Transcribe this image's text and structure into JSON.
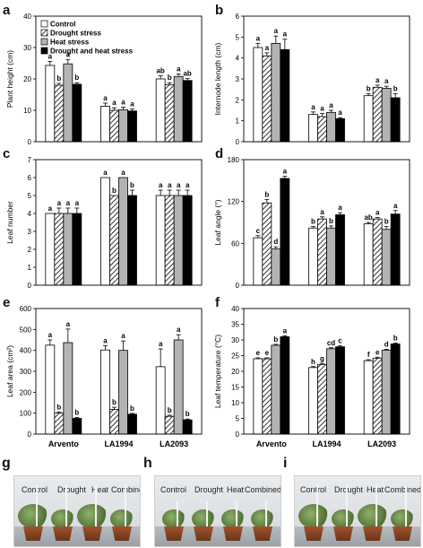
{
  "legend": {
    "items": [
      {
        "label": "Control",
        "pattern": "white"
      },
      {
        "label": "Drought stress",
        "pattern": "hatch"
      },
      {
        "label": "Heat stress",
        "pattern": "gray"
      },
      {
        "label": "Drought and heat stress",
        "pattern": "black"
      }
    ]
  },
  "colors": {
    "white": "#ffffff",
    "gray": "#b3b3b3",
    "black": "#000000",
    "hatch": "#000000"
  },
  "chart_data": [
    {
      "panel": "a",
      "type": "bar",
      "ylabel": "Plant height  (cm)",
      "ylim": [
        0,
        40
      ],
      "yticks": [
        0,
        10,
        20,
        30,
        40
      ],
      "categories": [
        "Arvento",
        "LA1994",
        "LA2093"
      ],
      "values": [
        [
          24.3,
          18.0,
          24.8,
          18.3
        ],
        [
          11.3,
          10.0,
          10.2,
          9.8
        ],
        [
          20.0,
          18.2,
          20.8,
          19.5
        ]
      ],
      "errors": [
        [
          1.3,
          0.6,
          1.3,
          0.5
        ],
        [
          1.0,
          0.8,
          0.8,
          0.6
        ],
        [
          1.0,
          0.6,
          0.8,
          0.6
        ]
      ],
      "letters": [
        [
          "a",
          "b",
          "a",
          "b"
        ],
        [
          "a",
          "a",
          "a",
          "a"
        ],
        [
          "ab",
          "b",
          "a",
          "ab"
        ]
      ],
      "show_xlabels": false
    },
    {
      "panel": "b",
      "type": "bar",
      "ylabel": "Internode length  (cm)",
      "ylim": [
        0,
        6
      ],
      "yticks": [
        0,
        1,
        2,
        3,
        4,
        5,
        6
      ],
      "categories": [
        "Arvento",
        "LA1994",
        "LA2093"
      ],
      "values": [
        [
          4.5,
          4.1,
          4.7,
          4.4
        ],
        [
          1.3,
          1.2,
          1.4,
          1.1
        ],
        [
          2.2,
          2.6,
          2.55,
          2.1
        ]
      ],
      "errors": [
        [
          0.2,
          0.15,
          0.35,
          0.5
        ],
        [
          0.12,
          0.15,
          0.1,
          0.05
        ],
        [
          0.1,
          0.1,
          0.1,
          0.2
        ]
      ],
      "letters": [
        [
          "a",
          "a",
          "a",
          "a"
        ],
        [
          "a",
          "a",
          "a",
          "a"
        ],
        [
          "b",
          "a",
          "a",
          "b"
        ]
      ],
      "show_xlabels": false
    },
    {
      "panel": "c",
      "type": "bar",
      "ylabel": "Leaf number",
      "ylim": [
        0,
        7
      ],
      "yticks": [
        0,
        1,
        2,
        3,
        4,
        5,
        6,
        7
      ],
      "categories": [
        "Arvento",
        "LA1994",
        "LA2093"
      ],
      "values": [
        [
          4.0,
          4.0,
          4.0,
          4.0
        ],
        [
          6.0,
          5.0,
          6.0,
          5.0
        ],
        [
          5.0,
          5.0,
          5.0,
          5.0
        ]
      ],
      "errors": [
        [
          0.0,
          0.3,
          0.3,
          0.3
        ],
        [
          0.0,
          0.0,
          0.0,
          0.3
        ],
        [
          0.3,
          0.3,
          0.3,
          0.3
        ]
      ],
      "letters": [
        [
          "a",
          "a",
          "a",
          "a"
        ],
        [
          "a",
          "b",
          "a",
          "b"
        ],
        [
          "a",
          "a",
          "a",
          "a"
        ]
      ],
      "show_xlabels": false
    },
    {
      "panel": "d",
      "type": "bar",
      "ylabel": "Leaf angle (°)",
      "ylim": [
        0,
        180
      ],
      "yticks": [
        0,
        60,
        120,
        180
      ],
      "categories": [
        "Arvento",
        "LA1994",
        "LA2093"
      ],
      "values": [
        [
          68,
          118,
          52,
          153
        ],
        [
          82,
          95,
          82,
          101
        ],
        [
          88,
          95,
          80,
          102
        ]
      ],
      "errors": [
        [
          3,
          5,
          3,
          3
        ],
        [
          2,
          3,
          3,
          3
        ],
        [
          2,
          2,
          4,
          5
        ]
      ],
      "letters": [
        [
          "c",
          "b",
          "d",
          "a"
        ],
        [
          "b",
          "a",
          "b",
          "a"
        ],
        [
          "ab",
          "a",
          "b",
          "a"
        ]
      ],
      "show_xlabels": false
    },
    {
      "panel": "e",
      "type": "bar",
      "ylabel": "Leaf area (cm²)",
      "ylim": [
        0,
        600
      ],
      "yticks": [
        0,
        100,
        200,
        300,
        400,
        500,
        600
      ],
      "categories": [
        "Arvento",
        "LA1994",
        "LA2093"
      ],
      "values": [
        [
          425,
          100,
          437,
          75
        ],
        [
          402,
          118,
          400,
          95
        ],
        [
          322,
          85,
          450,
          68
        ]
      ],
      "errors": [
        [
          25,
          6,
          65,
          5
        ],
        [
          20,
          10,
          45,
          4
        ],
        [
          85,
          5,
          25,
          4
        ]
      ],
      "letters": [
        [
          "a",
          "b",
          "a",
          "b"
        ],
        [
          "a",
          "b",
          "a",
          "b"
        ],
        [
          "a",
          "b",
          "a",
          "b"
        ]
      ],
      "show_xlabels": true
    },
    {
      "panel": "f",
      "type": "bar",
      "ylabel": "Leaf temperature (°C)",
      "ylim": [
        0,
        40
      ],
      "yticks": [
        0,
        5,
        10,
        15,
        20,
        25,
        30,
        35,
        40
      ],
      "categories": [
        "Arvento",
        "LA1994",
        "LA2093"
      ],
      "values": [
        [
          24.0,
          24.0,
          28.3,
          31.0
        ],
        [
          21.2,
          22.2,
          27.2,
          27.8
        ],
        [
          23.4,
          24.2,
          26.7,
          28.7
        ]
      ],
      "errors": [
        [
          0.3,
          0.3,
          0.3,
          0.3
        ],
        [
          0.3,
          0.3,
          0.3,
          0.3
        ],
        [
          0.3,
          0.3,
          0.3,
          0.3
        ]
      ],
      "letters": [
        [
          "e",
          "e",
          "b",
          "a"
        ],
        [
          "h",
          "g",
          "cd",
          "c"
        ],
        [
          "f",
          "e",
          "d",
          "b"
        ]
      ],
      "show_xlabels": true
    }
  ],
  "photos": [
    {
      "panel": "g",
      "labels": [
        "Control",
        "Drought",
        "Heat",
        "Combined"
      ]
    },
    {
      "panel": "h",
      "labels": [
        "Control",
        "Drought",
        "Heat",
        "Combined"
      ]
    },
    {
      "panel": "i",
      "labels": [
        "Control",
        "Drought",
        "Heat",
        "Combined"
      ]
    }
  ]
}
